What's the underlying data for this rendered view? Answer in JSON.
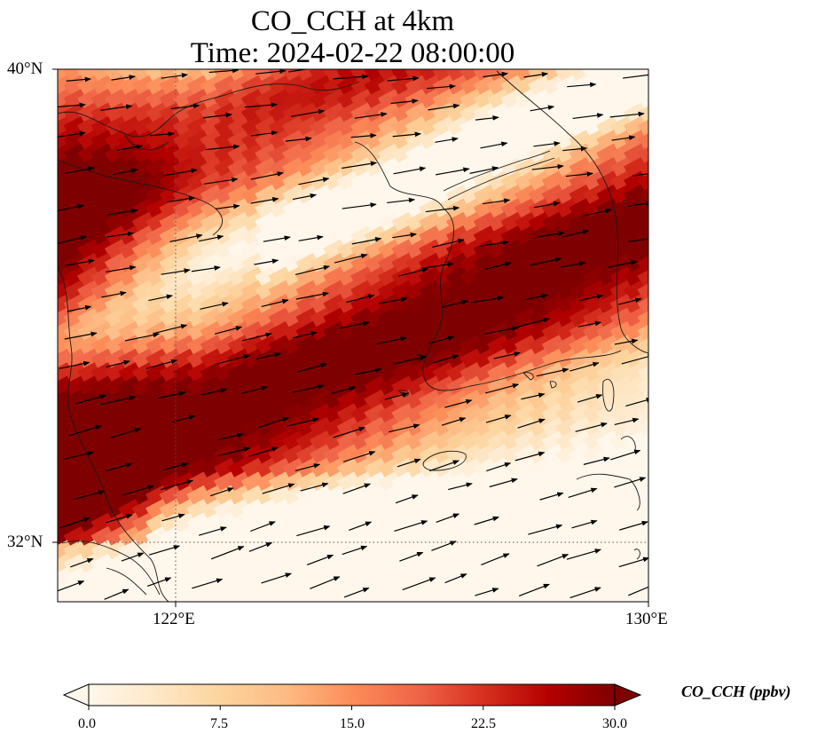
{
  "title": {
    "line1": "CO_CCH at 4km",
    "line2": "Time: 2024-02-22 08:00:00"
  },
  "map": {
    "lon_range": [
      120,
      130
    ],
    "lat_range": [
      31.2,
      40
    ],
    "gridlines": {
      "lon": [
        122
      ],
      "lat": [
        32
      ],
      "style": "dotted"
    },
    "lon_ticks": [
      "122°E",
      "130°E"
    ],
    "lat_ticks": [
      "40°N",
      "32°N"
    ],
    "field_description": "CO concentration shaded with OrRd colormap; wind vectors overlaid",
    "wind_direction": "mostly westerly to west-southwesterly"
  },
  "colorbar": {
    "label": "CO_CCH (ppbv)",
    "min": 0.0,
    "max": 30.0,
    "ticks": [
      "0.0",
      "7.5",
      "15.0",
      "22.5",
      "30.0"
    ],
    "extend": "both",
    "colormap": [
      "#fff7ec",
      "#fee8c8",
      "#fdd49e",
      "#fdbb84",
      "#fc8d59",
      "#ef6548",
      "#d7301f",
      "#b30000",
      "#7f0000"
    ]
  }
}
